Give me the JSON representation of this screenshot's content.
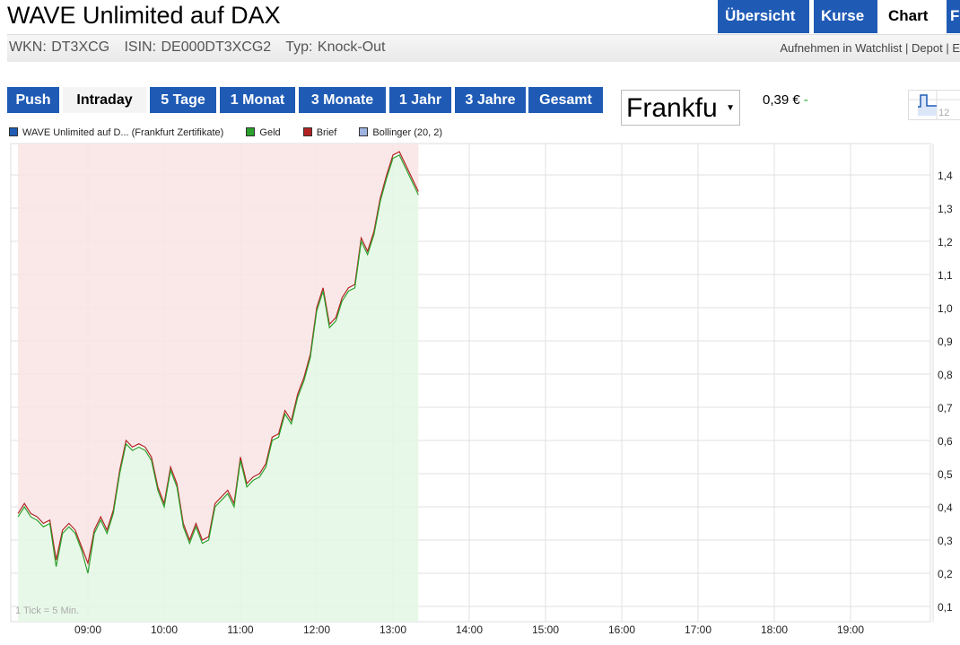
{
  "header": {
    "title": "WAVE Unlimited auf DAX",
    "tabs": [
      {
        "label": "Übersicht",
        "active": false
      },
      {
        "label": "Kurse",
        "active": false
      },
      {
        "label": "Chart",
        "active": true
      },
      {
        "label": "F",
        "active": false
      }
    ]
  },
  "subheader": {
    "info": "WKN: DT3XCG   ISIN: DE000DT3XCG2   Typ: Knock-Out",
    "links": [
      "Aufnehmen in Watchlist",
      "Depot",
      "E"
    ]
  },
  "periods": [
    {
      "label": "Push",
      "active": false
    },
    {
      "label": "Intraday",
      "active": true
    },
    {
      "label": "5 Tage",
      "active": false
    },
    {
      "label": "1 Monat",
      "active": false
    },
    {
      "label": "3 Monate",
      "active": false
    },
    {
      "label": "1 Jahr",
      "active": false
    },
    {
      "label": "3 Jahre",
      "active": false
    },
    {
      "label": "Gesamt",
      "active": false
    }
  ],
  "exchange_select": {
    "value": "Frankfu"
  },
  "quote": {
    "price": "0,39 €",
    "change": "-"
  },
  "thumbnail": {
    "label": "12"
  },
  "colors": {
    "accent": "#1f5bb5",
    "geld": "#2ca02c",
    "brief": "#b22222",
    "bollinger": "#9fb3e0",
    "series": "#1f5bb5",
    "pink_fill": "#f9e6e6",
    "green_fill": "#e5f7e5"
  },
  "chart_data": {
    "type": "line",
    "legend": [
      {
        "name": "WAVE Unlimited auf D... (Frankfurt Zertifikate)",
        "color": "#1f5bb5"
      },
      {
        "name": "Geld",
        "color": "#2ca02c"
      },
      {
        "name": "Brief",
        "color": "#b22222"
      },
      {
        "name": "Bollinger (20, 2)",
        "color": "#9fb3e0"
      }
    ],
    "legend_placement": "top-left",
    "note": "1 Tick = 5 Min.",
    "x_start": "08:05",
    "x_step_minutes": 5,
    "x_ticks": [
      "09:00",
      "10:00",
      "11:00",
      "12:00",
      "13:00",
      "14:00",
      "15:00",
      "16:00",
      "17:00",
      "18:00",
      "19:00"
    ],
    "y_ticks": [
      "1,4",
      "1,3",
      "1,2",
      "1,1",
      "1,0",
      "0,9",
      "0,8",
      "0,7",
      "0,6",
      "0,5",
      "0,4",
      "0,3",
      "0,2",
      "0,1"
    ],
    "ylim": [
      0.07,
      1.5
    ],
    "grid": true,
    "y_axis_side": "right",
    "series": [
      {
        "name": "Geld",
        "values": [
          0.37,
          0.4,
          0.37,
          0.36,
          0.34,
          0.35,
          0.22,
          0.32,
          0.34,
          0.32,
          0.27,
          0.2,
          0.32,
          0.36,
          0.32,
          0.38,
          0.5,
          0.59,
          0.57,
          0.58,
          0.57,
          0.54,
          0.45,
          0.4,
          0.51,
          0.46,
          0.34,
          0.29,
          0.34,
          0.29,
          0.3,
          0.4,
          0.42,
          0.44,
          0.4,
          0.54,
          0.46,
          0.48,
          0.49,
          0.52,
          0.6,
          0.61,
          0.68,
          0.65,
          0.73,
          0.78,
          0.85,
          0.99,
          1.05,
          0.94,
          0.96,
          1.02,
          1.05,
          1.06,
          1.2,
          1.16,
          1.22,
          1.32,
          1.39,
          1.45,
          1.46,
          1.42,
          1.38,
          1.34
        ]
      },
      {
        "name": "Brief",
        "values": [
          0.38,
          0.41,
          0.38,
          0.37,
          0.35,
          0.36,
          0.24,
          0.33,
          0.35,
          0.33,
          0.28,
          0.23,
          0.33,
          0.37,
          0.33,
          0.39,
          0.51,
          0.6,
          0.58,
          0.59,
          0.58,
          0.55,
          0.46,
          0.41,
          0.52,
          0.47,
          0.35,
          0.3,
          0.35,
          0.3,
          0.31,
          0.41,
          0.43,
          0.45,
          0.41,
          0.55,
          0.47,
          0.49,
          0.5,
          0.53,
          0.61,
          0.62,
          0.69,
          0.66,
          0.74,
          0.79,
          0.86,
          1.0,
          1.06,
          0.95,
          0.97,
          1.03,
          1.06,
          1.07,
          1.21,
          1.17,
          1.23,
          1.33,
          1.4,
          1.46,
          1.47,
          1.43,
          1.39,
          1.35
        ]
      }
    ]
  }
}
